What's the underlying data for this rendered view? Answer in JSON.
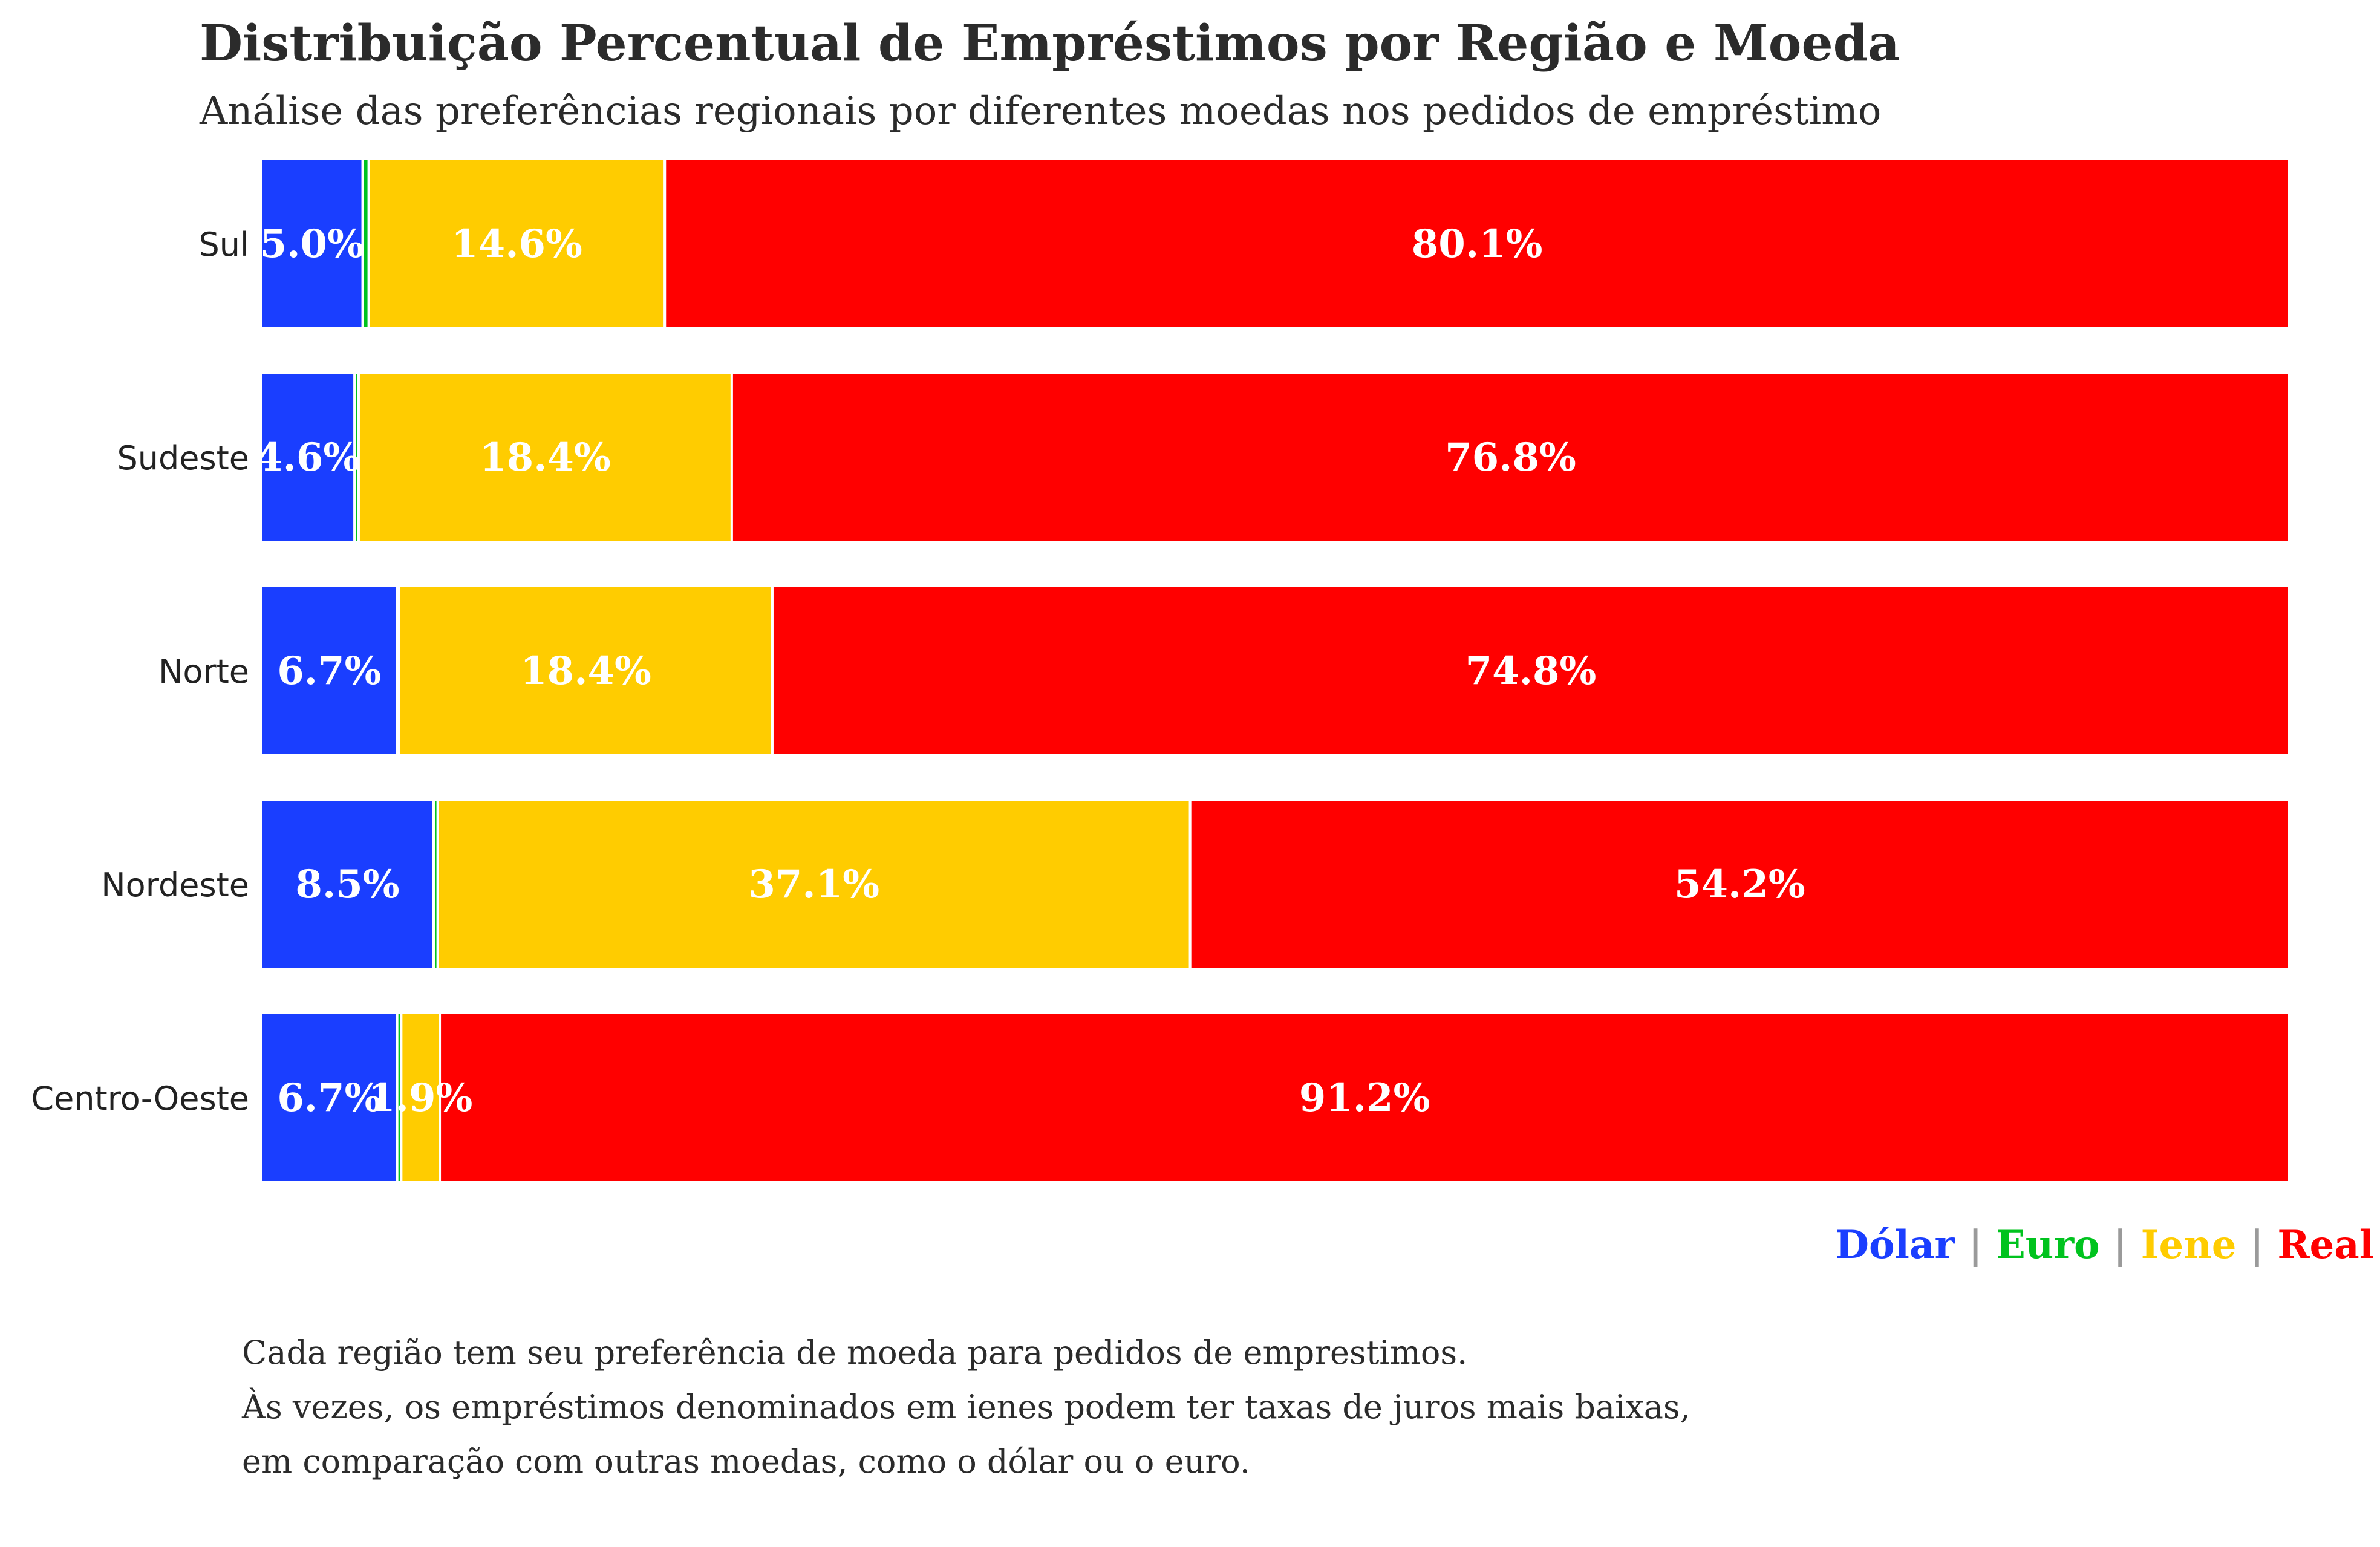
{
  "chart_data": {
    "type": "bar",
    "orientation": "horizontal",
    "stacked": true,
    "normalized_percent": true,
    "title": "Distribuição Percentual de Empréstimos por Região e Moeda",
    "subtitle": "Análise das preferências regionais por diferentes moedas nos pedidos de empréstimo",
    "categories": [
      "Sul",
      "Sudeste",
      "Norte",
      "Nordeste",
      "Centro-Oeste"
    ],
    "series": [
      {
        "name": "Dólar",
        "color": "#1a3eff",
        "values": [
          5.0,
          4.6,
          6.7,
          8.5,
          6.7
        ]
      },
      {
        "name": "Euro",
        "color": "#00c31e",
        "values": [
          0.3,
          0.2,
          0.1,
          0.2,
          0.2
        ]
      },
      {
        "name": "Iene",
        "color": "#ffcc00",
        "values": [
          14.6,
          18.4,
          18.4,
          37.1,
          1.9
        ]
      },
      {
        "name": "Real",
        "color": "#ff0000",
        "values": [
          80.1,
          76.8,
          74.8,
          54.2,
          91.2
        ]
      }
    ],
    "bar_labels": {
      "Dólar": [
        "5.0%",
        "4.6%",
        "6.7%",
        "8.5%",
        "6.7%"
      ],
      "Iene": [
        "14.6%",
        "18.4%",
        "18.4%",
        "37.1%",
        "1.9%"
      ],
      "Real": [
        "80.1%",
        "76.8%",
        "74.8%",
        "54.2%",
        "91.2%"
      ]
    },
    "xlim": [
      0,
      100
    ],
    "grid": false,
    "legend_placement": "bottom-right",
    "legend_separator": "|"
  },
  "footnote": [
    "Cada região tem seu preferência de moeda para pedidos de emprestimos.",
    "Às vezes, os empréstimos denominados em ienes podem ter taxas de juros mais baixas,",
    "em comparação com outras moedas, como o dólar ou o euro."
  ],
  "colors": {
    "text_dark": "#2b2b2b",
    "legend_separator": "#9a9a9a",
    "bar_label": "#ffffff"
  }
}
